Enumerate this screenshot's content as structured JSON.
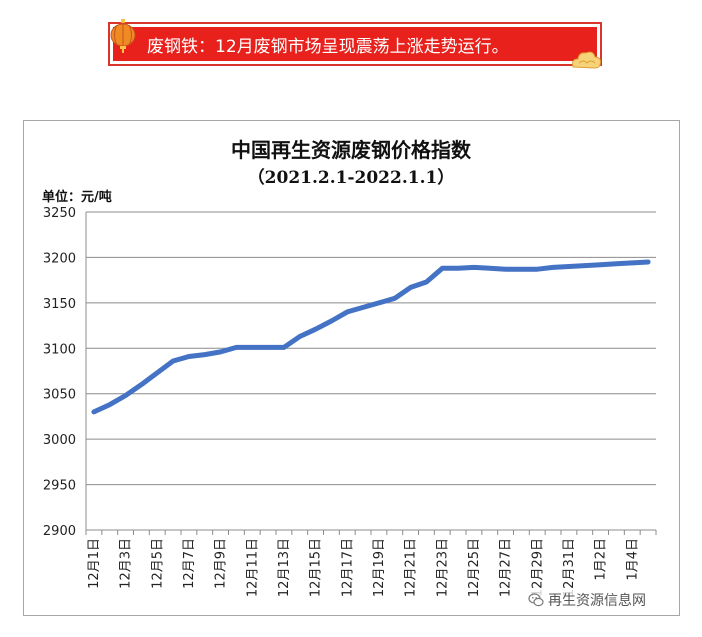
{
  "banner": {
    "text": "废钢铁：12月废钢市场呈现震荡上涨走势运行。"
  },
  "chart_data": {
    "type": "line",
    "title": "中国再生资源废钢价格指数",
    "subtitle": "（2021.2.1-2022.1.1）",
    "unit_label": "单位：元/吨",
    "ylim": [
      2900,
      3250
    ],
    "yticks": [
      2900,
      2950,
      3000,
      3050,
      3100,
      3150,
      3200,
      3250
    ],
    "grid": true,
    "color": "#4472c4",
    "x_tick_labels": [
      "12月1日",
      "12月3日",
      "12月5日",
      "12月7日",
      "12月9日",
      "12月11日",
      "12月13日",
      "12月15日",
      "12月17日",
      "12月19日",
      "12月21日",
      "12月23日",
      "12月25日",
      "12月27日",
      "12月29日",
      "12月31日",
      "1月2日",
      "1月4日"
    ],
    "series": [
      {
        "x": [
          "12月1日",
          "12月2日",
          "12月3日",
          "12月4日",
          "12月5日",
          "12月6日",
          "12月7日",
          "12月8日",
          "12月9日",
          "12月10日",
          "12月11日",
          "12月12日",
          "12月13日",
          "12月14日",
          "12月15日",
          "12月16日",
          "12月17日",
          "12月18日",
          "12月19日",
          "12月20日",
          "12月21日",
          "12月22日",
          "12月23日",
          "12月24日",
          "12月25日",
          "12月26日",
          "12月27日",
          "12月28日",
          "12月29日",
          "12月30日",
          "12月31日",
          "1月1日",
          "1月2日",
          "1月3日",
          "1月4日",
          "1月5日"
        ],
        "values": [
          3030,
          3038,
          3048,
          3060,
          3073,
          3086,
          3091,
          3093,
          3096,
          3101,
          3101,
          3101,
          3101,
          3113,
          3121,
          3130,
          3140,
          3145,
          3150,
          3155,
          3167,
          3173,
          3188,
          3188,
          3189,
          3188,
          3187,
          3187,
          3187,
          3189,
          3190,
          3191,
          3192,
          3193,
          3194,
          3195
        ]
      }
    ]
  },
  "watermark": {
    "text": "再生资源信息网",
    "icon": "wechat-icon"
  }
}
